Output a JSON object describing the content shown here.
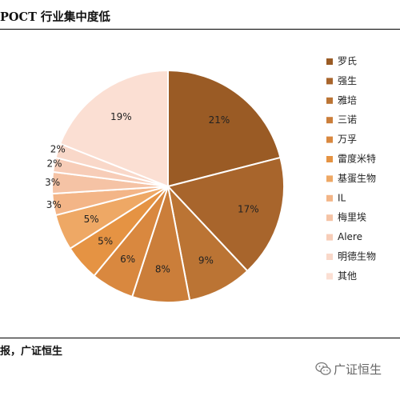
{
  "title": "POCT 行业集中度低",
  "source": "报，广证恒生",
  "watermark": "广证恒生",
  "chart_data": {
    "type": "pie",
    "title": "",
    "slices": [
      {
        "label": "罗氏",
        "value": 21,
        "display": "21%",
        "color": "#9a5b25"
      },
      {
        "label": "强生",
        "value": 17,
        "display": "17%",
        "color": "#a8652c"
      },
      {
        "label": "雅培",
        "value": 9,
        "display": "9%",
        "color": "#bb7434"
      },
      {
        "label": "三诺",
        "value": 8,
        "display": "8%",
        "color": "#cb7e3a"
      },
      {
        "label": "万孚",
        "value": 6,
        "display": "6%",
        "color": "#d9883f"
      },
      {
        "label": "雷度米特",
        "value": 5,
        "display": "5%",
        "color": "#e59343"
      },
      {
        "label": "基蛋生物",
        "value": 5,
        "display": "5%",
        "color": "#eea865"
      },
      {
        "label": "IL",
        "value": 3,
        "display": "3%",
        "color": "#f3b587"
      },
      {
        "label": "梅里埃",
        "value": 3,
        "display": "3%",
        "color": "#f5c3a5"
      },
      {
        "label": "Alere",
        "value": 2,
        "display": "2%",
        "color": "#f7cdb8"
      },
      {
        "label": "明德生物",
        "value": 2,
        "display": "2%",
        "color": "#f9d8c9"
      },
      {
        "label": "其他",
        "value": 19,
        "display": "19%",
        "color": "#fbdfd3"
      }
    ],
    "legend_position": "right"
  }
}
